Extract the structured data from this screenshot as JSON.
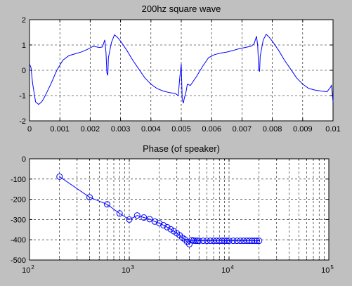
{
  "chart_data": [
    {
      "type": "line",
      "title": "200hz square wave",
      "xlabel": "",
      "ylabel": "",
      "xlim": [
        0,
        0.01
      ],
      "ylim": [
        -2,
        2
      ],
      "x_scale": "linear",
      "grid": true,
      "xticks": [
        0,
        0.001,
        0.002,
        0.003,
        0.004,
        0.005,
        0.006,
        0.007,
        0.008,
        0.009,
        0.01
      ],
      "xtick_labels": [
        "0",
        "0.001",
        "0.002",
        "0.003",
        "0.004",
        "0.005",
        "0.006",
        "0.007",
        "0.008",
        "0.009",
        "0.01"
      ],
      "yticks": [
        -2,
        -1,
        0,
        1,
        2
      ],
      "ytick_labels": [
        "-2",
        "-1",
        "0",
        "1",
        "2"
      ],
      "series": [
        {
          "color": "#0000ff",
          "x": [
            0,
            5e-05,
            0.0001,
            0.0002,
            0.0003,
            0.0004,
            0.0005,
            0.0007,
            0.0009,
            0.0011,
            0.0013,
            0.0015,
            0.0017,
            0.0019,
            0.0021,
            0.0023,
            0.0024,
            0.00248,
            0.00252,
            0.00255,
            0.00258,
            0.0026,
            0.0027,
            0.0028,
            0.0029,
            0.003,
            0.0032,
            0.0034,
            0.0036,
            0.0038,
            0.004,
            0.0042,
            0.0044,
            0.0046,
            0.0048,
            0.0049,
            0.00495,
            0.005,
            0.00503,
            0.00507,
            0.0051,
            0.00515,
            0.0052,
            0.0053,
            0.0055,
            0.0057,
            0.0059,
            0.0061,
            0.0063,
            0.0065,
            0.0067,
            0.0069,
            0.0071,
            0.0073,
            0.0074,
            0.00748,
            0.00752,
            0.00755,
            0.00758,
            0.0076,
            0.0077,
            0.0078,
            0.0079,
            0.008,
            0.0082,
            0.0084,
            0.0086,
            0.0088,
            0.009,
            0.0092,
            0.0094,
            0.0096,
            0.0098,
            0.0099,
            0.00995,
            0.01
          ],
          "y": [
            0.25,
            0.1,
            -0.5,
            -1.25,
            -1.35,
            -1.25,
            -1.05,
            -0.55,
            0.0,
            0.4,
            0.58,
            0.65,
            0.72,
            0.82,
            0.95,
            0.9,
            0.92,
            1.2,
            0.7,
            -0.1,
            -0.2,
            0.5,
            1.1,
            1.4,
            1.3,
            1.15,
            0.8,
            0.4,
            0.05,
            -0.3,
            -0.55,
            -0.72,
            -0.82,
            -0.88,
            -0.92,
            -1.0,
            -0.3,
            0.25,
            -1.15,
            -1.3,
            -1.1,
            -0.9,
            -0.55,
            -0.6,
            -0.25,
            0.15,
            0.5,
            0.62,
            0.68,
            0.72,
            0.78,
            0.85,
            0.9,
            0.95,
            1.05,
            1.35,
            0.95,
            0.05,
            -0.05,
            0.55,
            1.2,
            1.42,
            1.3,
            1.15,
            0.8,
            0.4,
            0.05,
            -0.3,
            -0.55,
            -0.72,
            -0.78,
            -0.82,
            -0.85,
            -0.7,
            -0.6,
            -1.25
          ]
        }
      ]
    },
    {
      "type": "line",
      "title": "Phase (of speaker)",
      "xlabel": "",
      "ylabel": "",
      "xlim": [
        100,
        100000
      ],
      "ylim": [
        -500,
        0
      ],
      "x_scale": "log",
      "grid": true,
      "xticks": [
        100,
        1000,
        10000,
        100000
      ],
      "xtick_labels": [
        {
          "base": "10",
          "exp": "2"
        },
        {
          "base": "10",
          "exp": "3"
        },
        {
          "base": "10",
          "exp": "4"
        },
        {
          "base": "10",
          "exp": "5"
        }
      ],
      "yticks": [
        -500,
        -400,
        -300,
        -200,
        -100,
        0
      ],
      "ytick_labels": [
        "-500",
        "-400",
        "-300",
        "-200",
        "-100",
        "0"
      ],
      "series": [
        {
          "color": "#0000ff",
          "marker": "circle",
          "x": [
            200,
            400,
            600,
            800,
            1000,
            1200,
            1400,
            1600,
            1800,
            2000,
            2200,
            2400,
            2600,
            2800,
            3000,
            3200,
            3400,
            3600,
            3800,
            4000,
            4200,
            4400,
            4600,
            4800,
            5000,
            5500,
            6000,
            6500,
            7000,
            7500,
            8000,
            8500,
            9000,
            9500,
            10000,
            11000,
            12000,
            13000,
            14000,
            15000,
            16000,
            17000,
            18000,
            19000,
            20000
          ],
          "y": [
            -88,
            -190,
            -225,
            -270,
            -300,
            -280,
            -290,
            -298,
            -310,
            -318,
            -328,
            -338,
            -348,
            -358,
            -368,
            -378,
            -390,
            -398,
            -410,
            -422,
            -402,
            -404,
            -405,
            -405,
            -405,
            -405,
            -405,
            -405,
            -405,
            -405,
            -405,
            -405,
            -405,
            -405,
            -405,
            -405,
            -405,
            -405,
            -405,
            -405,
            -405,
            -405,
            -405,
            -405,
            -405
          ]
        }
      ]
    }
  ]
}
